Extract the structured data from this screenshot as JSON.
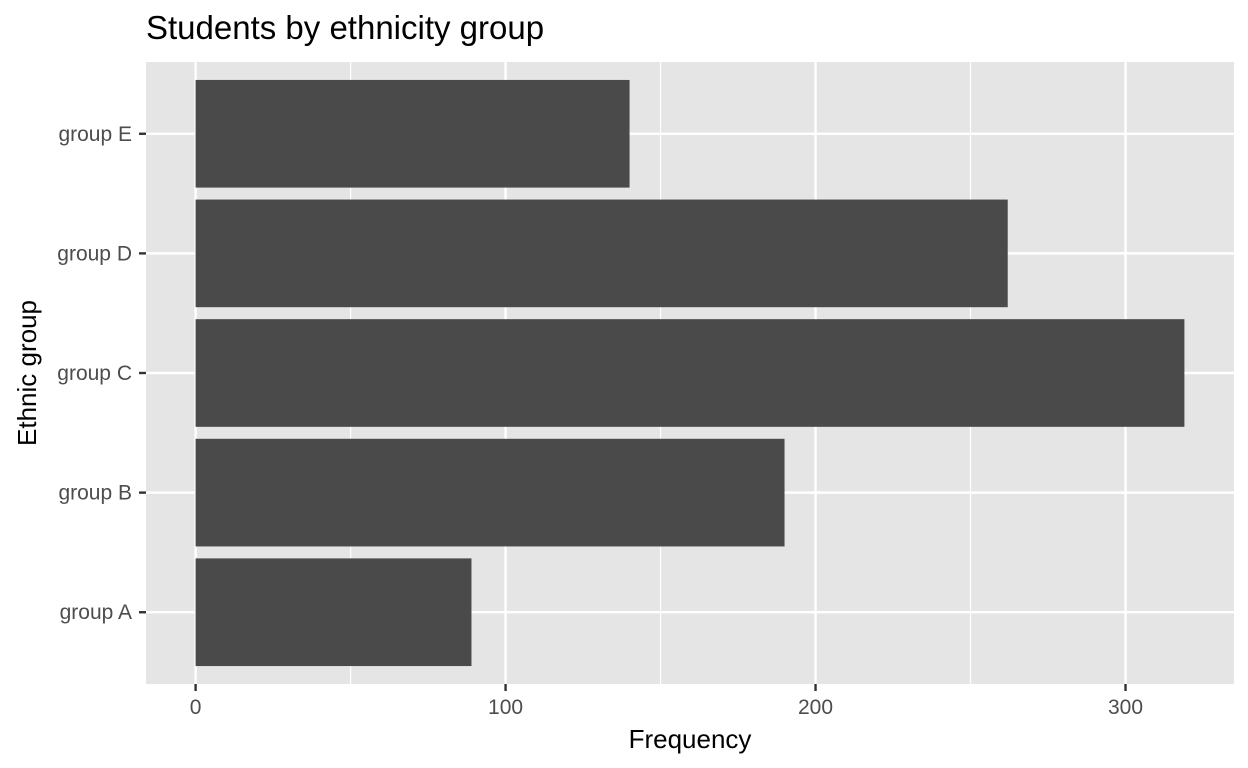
{
  "chart_data": {
    "type": "bar",
    "orientation": "horizontal",
    "title": "Students by ethnicity group",
    "xlabel": "Frequency",
    "ylabel": "Ethnic group",
    "categories": [
      "group A",
      "group B",
      "group C",
      "group D",
      "group E"
    ],
    "values": [
      89,
      190,
      319,
      262,
      140
    ],
    "xlim": [
      -16,
      335
    ],
    "xticks": [
      0,
      100,
      200,
      300
    ],
    "grid": true,
    "legend": "none",
    "colors": {
      "bar": "#4a4a4a",
      "panel_background": "#e5e5e5",
      "grid": "#ffffff",
      "tick_text": "#4d4d4d"
    }
  }
}
